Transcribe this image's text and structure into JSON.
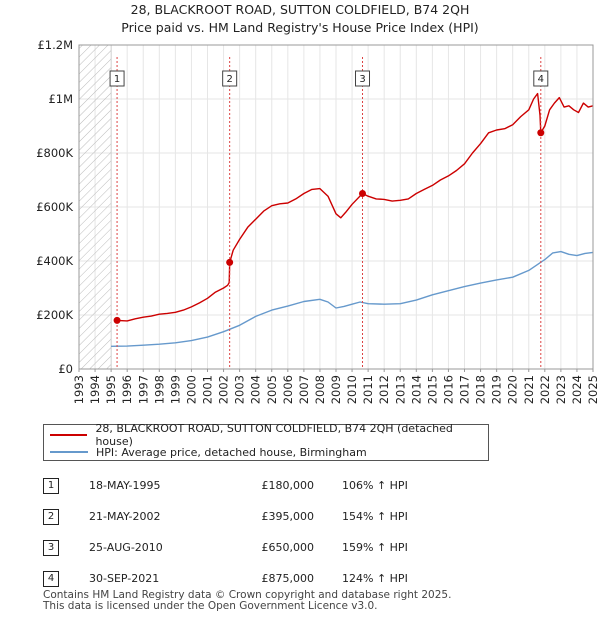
{
  "title_line1": "28, BLACKROOT ROAD, SUTTON COLDFIELD, B74 2QH",
  "title_line2": "Price paid vs. HM Land Registry's House Price Index (HPI)",
  "chart_data": {
    "type": "line",
    "title": "28, BLACKROOT ROAD, SUTTON COLDFIELD, B74 2QH — Price paid vs. HM Land Registry's House Price Index (HPI)",
    "xlim": [
      1993,
      2025
    ],
    "ylim": [
      0,
      1200000
    ],
    "x_ticks": [
      1993,
      1994,
      1995,
      1996,
      1997,
      1998,
      1999,
      2000,
      2001,
      2002,
      2003,
      2004,
      2005,
      2006,
      2007,
      2008,
      2009,
      2010,
      2011,
      2012,
      2013,
      2014,
      2015,
      2016,
      2017,
      2018,
      2019,
      2020,
      2021,
      2022,
      2023,
      2024,
      2025
    ],
    "y_ticks": [
      {
        "value": 0,
        "label": "£0"
      },
      {
        "value": 200000,
        "label": "£200K"
      },
      {
        "value": 400000,
        "label": "£400K"
      },
      {
        "value": 600000,
        "label": "£600K"
      },
      {
        "value": 800000,
        "label": "£800K"
      },
      {
        "value": 1000000,
        "label": "£1M"
      },
      {
        "value": 1200000,
        "label": "£1.2M"
      }
    ],
    "hatch_range": [
      1993,
      1995.0
    ],
    "series": [
      {
        "name": "28, BLACKROOT ROAD, SUTTON COLDFIELD, B74 2QH (detached house)",
        "color": "#cc0000",
        "points": [
          [
            1995.37,
            180000
          ],
          [
            1996,
            178000
          ],
          [
            1996.5,
            186000
          ],
          [
            1997,
            192000
          ],
          [
            1997.5,
            196000
          ],
          [
            1998,
            203000
          ],
          [
            1998.5,
            206000
          ],
          [
            1999,
            210000
          ],
          [
            1999.5,
            218000
          ],
          [
            2000,
            230000
          ],
          [
            2000.5,
            245000
          ],
          [
            2001,
            262000
          ],
          [
            2001.5,
            285000
          ],
          [
            2002.0,
            300000
          ],
          [
            2002.25,
            310000
          ],
          [
            2002.35,
            320000
          ],
          [
            2002.38,
            395000
          ],
          [
            2002.6,
            440000
          ],
          [
            2003,
            480000
          ],
          [
            2003.5,
            525000
          ],
          [
            2004,
            555000
          ],
          [
            2004.5,
            585000
          ],
          [
            2005,
            605000
          ],
          [
            2005.5,
            612000
          ],
          [
            2006,
            615000
          ],
          [
            2006.5,
            630000
          ],
          [
            2007,
            650000
          ],
          [
            2007.5,
            665000
          ],
          [
            2008,
            668000
          ],
          [
            2008.5,
            640000
          ],
          [
            2009,
            575000
          ],
          [
            2009.3,
            560000
          ],
          [
            2009.6,
            580000
          ],
          [
            2010,
            610000
          ],
          [
            2010.65,
            650000
          ],
          [
            2011,
            640000
          ],
          [
            2011.5,
            630000
          ],
          [
            2012,
            628000
          ],
          [
            2012.5,
            622000
          ],
          [
            2013,
            625000
          ],
          [
            2013.5,
            630000
          ],
          [
            2014,
            650000
          ],
          [
            2014.5,
            665000
          ],
          [
            2015,
            680000
          ],
          [
            2015.5,
            700000
          ],
          [
            2016,
            715000
          ],
          [
            2016.5,
            735000
          ],
          [
            2017,
            760000
          ],
          [
            2017.5,
            800000
          ],
          [
            2018,
            835000
          ],
          [
            2018.5,
            875000
          ],
          [
            2019,
            885000
          ],
          [
            2019.5,
            890000
          ],
          [
            2020,
            905000
          ],
          [
            2020.5,
            935000
          ],
          [
            2021,
            960000
          ],
          [
            2021.3,
            1000000
          ],
          [
            2021.55,
            1020000
          ],
          [
            2021.7,
            940000
          ],
          [
            2021.75,
            875000
          ],
          [
            2022,
            900000
          ],
          [
            2022.3,
            960000
          ],
          [
            2022.6,
            985000
          ],
          [
            2022.9,
            1005000
          ],
          [
            2023.2,
            970000
          ],
          [
            2023.5,
            975000
          ],
          [
            2023.8,
            960000
          ],
          [
            2024.1,
            950000
          ],
          [
            2024.4,
            985000
          ],
          [
            2024.7,
            970000
          ],
          [
            2025,
            975000
          ]
        ]
      },
      {
        "name": "HPI: Average price, detached house, Birmingham",
        "color": "#6699cc",
        "points": [
          [
            1995,
            84000
          ],
          [
            1996,
            85000
          ],
          [
            1997,
            88000
          ],
          [
            1998,
            92000
          ],
          [
            1999,
            97000
          ],
          [
            2000,
            105000
          ],
          [
            2001,
            118000
          ],
          [
            2002,
            138000
          ],
          [
            2003,
            162000
          ],
          [
            2004,
            195000
          ],
          [
            2005,
            218000
          ],
          [
            2006,
            233000
          ],
          [
            2007,
            250000
          ],
          [
            2008,
            258000
          ],
          [
            2008.5,
            248000
          ],
          [
            2009,
            226000
          ],
          [
            2009.5,
            232000
          ],
          [
            2010,
            240000
          ],
          [
            2010.5,
            248000
          ],
          [
            2011,
            242000
          ],
          [
            2012,
            240000
          ],
          [
            2013,
            242000
          ],
          [
            2014,
            255000
          ],
          [
            2015,
            275000
          ],
          [
            2016,
            290000
          ],
          [
            2017,
            305000
          ],
          [
            2018,
            318000
          ],
          [
            2019,
            330000
          ],
          [
            2020,
            340000
          ],
          [
            2021,
            365000
          ],
          [
            2022,
            405000
          ],
          [
            2022.5,
            430000
          ],
          [
            2023,
            435000
          ],
          [
            2023.5,
            425000
          ],
          [
            2024,
            420000
          ],
          [
            2024.5,
            428000
          ],
          [
            2025,
            432000
          ]
        ]
      }
    ],
    "annotations": [
      {
        "label": "1",
        "x": 1995.37,
        "y": 180000
      },
      {
        "label": "2",
        "x": 2002.38,
        "y": 395000
      },
      {
        "label": "3",
        "x": 2010.65,
        "y": 650000
      },
      {
        "label": "4",
        "x": 2021.75,
        "y": 875000
      }
    ]
  },
  "legend": {
    "property_label": "28, BLACKROOT ROAD, SUTTON COLDFIELD, B74 2QH (detached house)",
    "hpi_label": "HPI: Average price, detached house, Birmingham",
    "property_color": "#cc0000",
    "hpi_color": "#6699cc"
  },
  "sales": [
    {
      "num": "1",
      "date": "18-MAY-1995",
      "price": "£180,000",
      "hpi": "106% ↑ HPI"
    },
    {
      "num": "2",
      "date": "21-MAY-2002",
      "price": "£395,000",
      "hpi": "154% ↑ HPI"
    },
    {
      "num": "3",
      "date": "25-AUG-2010",
      "price": "£650,000",
      "hpi": "159% ↑ HPI"
    },
    {
      "num": "4",
      "date": "30-SEP-2021",
      "price": "£875,000",
      "hpi": "124% ↑ HPI"
    }
  ],
  "footer": {
    "line1": "Contains HM Land Registry data © Crown copyright and database right 2025.",
    "line2": "This data is licensed under the Open Government Licence v3.0."
  }
}
